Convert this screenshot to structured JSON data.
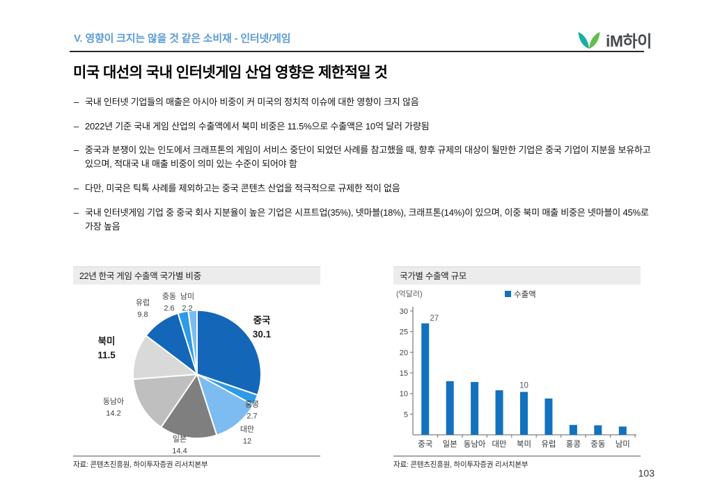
{
  "header": {
    "section_title": "V. 영향이 크지는 않을 것 같은 소비재 - 인터넷/게임",
    "logo_text": "iM하이"
  },
  "title": "미국 대선의 국내 인터넷게임 산업 영향은 제한적일 것",
  "bullets": [
    "국내 인터넷 기업들의 매출은 아시아 비중이 커 미국의 정치적 이슈에 대한 영향이 크지 않음",
    "2022년 기준 국내 게임 산업의 수출액에서 북미 비중은 11.5%으로 수출액은 10억 달러 가량됨",
    "중국과 분쟁이 있는 인도에서 크래프톤의 게임이 서비스 중단이 되었던 사례를 참고했을 때, 향후 규제의 대상이 될만한 기업은 중국 기업이 지분을 보유하고 있으며, 적대국 내 매출 비중이 의미 있는 수준이 되어야 함",
    "다만, 미국은 틱톡 사례를 제외하고는 중국 콘텐츠 산업을 적극적으로 규제한 적이 없음",
    "국내 인터넷게임 기업 중 중국 회사 지분율이 높은 기업은 시프트업(35%), 넷마블(18%), 크래프톤(14%)이 있으며, 이중 북미 매출 비중은 넷마블이 45%로 가장 높음"
  ],
  "charts": {
    "left": {
      "title": "22년 한국 게임 수출액 국가별 비중",
      "source": "자료: 콘텐츠진흥원, 하이투자증권 리서치본부"
    },
    "right": {
      "title": "국가별 수출액 규모",
      "source": "자료: 콘텐츠진흥원, 하이투자증권 리서치본부"
    }
  },
  "colors": {
    "accent_text": "#5B9BD5",
    "bar_blue": "#1272BE",
    "logo_teal": "#17AFA3",
    "logo_green": "#62BE4C"
  },
  "page_number": "103",
  "chart_data": [
    {
      "type": "pie",
      "title": "22년 한국 게임 수출액 국가별 비중",
      "labels": [
        "중국",
        "홍콩",
        "대만",
        "일본",
        "동남아",
        "북미",
        "유럽",
        "중동",
        "남미"
      ],
      "values": [
        30.1,
        2.7,
        12,
        14.4,
        14.2,
        11.5,
        9.8,
        2.6,
        2.2
      ],
      "display_values": [
        "30.1",
        "2.7",
        "12",
        "14.4",
        "14.2",
        "11.5",
        "9.8",
        "2.6",
        "2.2"
      ],
      "colors": [
        "#1467B8",
        "#2E9BE6",
        "#7CBCF0",
        "#7F7F7F",
        "#BFBFBF",
        "#D9D9D9",
        "#1467B8",
        "#2E9BE6",
        "#7CBCF0"
      ],
      "emphasized": [
        "중국",
        "북미"
      ],
      "start_angle": "top",
      "direction": "clockwise",
      "source": "자료: 콘텐츠진흥원, 하이투자증권 리서치본부"
    },
    {
      "type": "bar",
      "title": "국가별 수출액 규모",
      "ylabel": "(억달러)",
      "legend": "수출액",
      "legend_position": "top-center",
      "categories": [
        "중국",
        "일본",
        "동남아",
        "대만",
        "북미",
        "유럽",
        "홍콩",
        "중동",
        "남미"
      ],
      "values": [
        27,
        13,
        12.8,
        10.8,
        10.4,
        8.8,
        2.4,
        2.3,
        2.0
      ],
      "data_labels": {
        "중국": "27",
        "북미": "10"
      },
      "bar_color": "#1272BE",
      "ylim": [
        0,
        30
      ],
      "yticks": [
        5,
        10,
        15,
        20,
        25,
        30
      ],
      "grid": false,
      "source": "자료: 콘텐츠진흥원, 하이투자증권 리서치본부"
    }
  ]
}
